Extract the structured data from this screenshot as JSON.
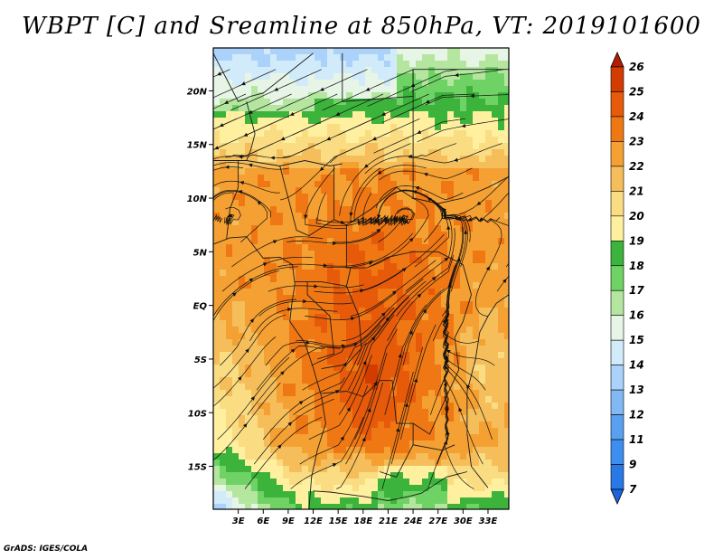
{
  "title": "WBPT [C] and Sreamline at 850hPa, VT: 2019101600",
  "credit": "GrADS: IGES/COLA",
  "map": {
    "lat_range": [
      -19,
      24
    ],
    "lon_range": [
      0,
      35.5
    ],
    "lat_ticks": [
      {
        "value": 20,
        "label": "20N"
      },
      {
        "value": 15,
        "label": "15N"
      },
      {
        "value": 10,
        "label": "10N"
      },
      {
        "value": 5,
        "label": "5N"
      },
      {
        "value": 0,
        "label": "EQ"
      },
      {
        "value": -5,
        "label": "5S"
      },
      {
        "value": -10,
        "label": "10S"
      },
      {
        "value": -15,
        "label": "15S"
      }
    ],
    "lon_ticks": [
      {
        "value": 3,
        "label": "3E"
      },
      {
        "value": 6,
        "label": "6E"
      },
      {
        "value": 9,
        "label": "9E"
      },
      {
        "value": 12,
        "label": "12E"
      },
      {
        "value": 15,
        "label": "15E"
      },
      {
        "value": 18,
        "label": "18E"
      },
      {
        "value": 21,
        "label": "21E"
      },
      {
        "value": 24,
        "label": "24E"
      },
      {
        "value": 27,
        "label": "27E"
      },
      {
        "value": 30,
        "label": "30E"
      },
      {
        "value": 33,
        "label": "33E"
      }
    ]
  },
  "colorbar": {
    "labels": [
      "7",
      "9",
      "11",
      "12",
      "13",
      "14",
      "15",
      "16",
      "17",
      "18",
      "19",
      "20",
      "21",
      "22",
      "23",
      "24",
      "25",
      "26"
    ],
    "colors": [
      "#1e64dc",
      "#2878e6",
      "#3c8ef0",
      "#5aa0f0",
      "#82b9f5",
      "#aad2fa",
      "#d2ebfa",
      "#e6f5e6",
      "#b4e6a0",
      "#6ed264",
      "#3cb43c",
      "#fff0a0",
      "#fadc82",
      "#f5be5a",
      "#f5a032",
      "#f07814",
      "#e65a0a",
      "#d23c00",
      "#b41e00"
    ]
  }
}
